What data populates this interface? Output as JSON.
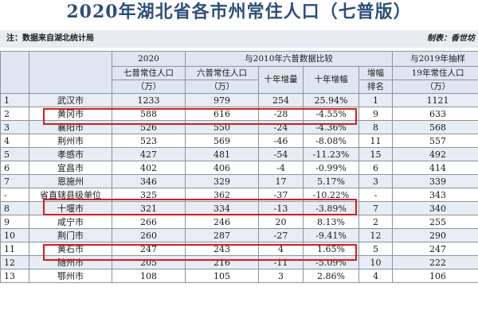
{
  "title": "2020年湖北省各市州常住人口（七普版）",
  "note": {
    "source": "注：数据来自湖北统计局",
    "maker": "制表：香世坊"
  },
  "header": {
    "col_2020": "2020",
    "col_2020_sub": "七普常住人口",
    "col_2020_unit": "（万）",
    "group_2010": "与2010年六普数据比较",
    "col_2010": "六普常住人口",
    "col_2010_unit": "（万）",
    "col_inc": "十年增量",
    "col_rate": "十年增幅",
    "col_rank": "增幅",
    "col_rank2": "排名",
    "group_2019": "与2019年抽样",
    "col_2019": "19年常住人口",
    "col_2019_unit": "（万）"
  },
  "rows": [
    {
      "no": "1",
      "name": "武汉市",
      "p2020": "1233",
      "p2010": "979",
      "inc": "254",
      "rate": "25.94%",
      "rank": "1",
      "p2019": "1121"
    },
    {
      "no": "2",
      "name": "黄冈市",
      "p2020": "588",
      "p2010": "616",
      "inc": "-28",
      "rate": "-4.55%",
      "rank": "9",
      "p2019": "633"
    },
    {
      "no": "3",
      "name": "襄阳市",
      "p2020": "526",
      "p2010": "550",
      "inc": "-24",
      "rate": "-4.36%",
      "rank": "8",
      "p2019": "568"
    },
    {
      "no": "4",
      "name": "荆州市",
      "p2020": "523",
      "p2010": "569",
      "inc": "-46",
      "rate": "-8.08%",
      "rank": "11",
      "p2019": "557"
    },
    {
      "no": "5",
      "name": "孝感市",
      "p2020": "427",
      "p2010": "481",
      "inc": "-54",
      "rate": "-11.23%",
      "rank": "15",
      "p2019": "492"
    },
    {
      "no": "6",
      "name": "宜昌市",
      "p2020": "402",
      "p2010": "406",
      "inc": "-4",
      "rate": "-0.99%",
      "rank": "6",
      "p2019": "414"
    },
    {
      "no": "7",
      "name": "恩施州",
      "p2020": "346",
      "p2010": "329",
      "inc": "17",
      "rate": "5.17%",
      "rank": "3",
      "p2019": "339"
    },
    {
      "no": "-",
      "name": "省直辖县级单位",
      "p2020": "325",
      "p2010": "362",
      "inc": "-37",
      "rate": "-10.22%",
      "rank": "-",
      "p2019": "343"
    },
    {
      "no": "8",
      "name": "十堰市",
      "p2020": "321",
      "p2010": "334",
      "inc": "-13",
      "rate": "-3.89%",
      "rank": "7",
      "p2019": "340"
    },
    {
      "no": "9",
      "name": "咸宁市",
      "p2020": "266",
      "p2010": "246",
      "inc": "20",
      "rate": "8.13%",
      "rank": "2",
      "p2019": "255"
    },
    {
      "no": "10",
      "name": "荆门市",
      "p2020": "260",
      "p2010": "287",
      "inc": "-27",
      "rate": "-9.41%",
      "rank": "12",
      "p2019": "290"
    },
    {
      "no": "11",
      "name": "黄石市",
      "p2020": "247",
      "p2010": "243",
      "inc": "4",
      "rate": "1.65%",
      "rank": "5",
      "p2019": "247"
    },
    {
      "no": "12",
      "name": "随州市",
      "p2020": "205",
      "p2010": "216",
      "inc": "-11",
      "rate": "-5.09%",
      "rank": "10",
      "p2019": "222"
    },
    {
      "no": "13",
      "name": "鄂州市",
      "p2020": "108",
      "p2010": "105",
      "inc": "3",
      "rate": "2.86%",
      "rank": "4",
      "p2019": "106"
    }
  ],
  "highlight_color": "#d61c1c"
}
